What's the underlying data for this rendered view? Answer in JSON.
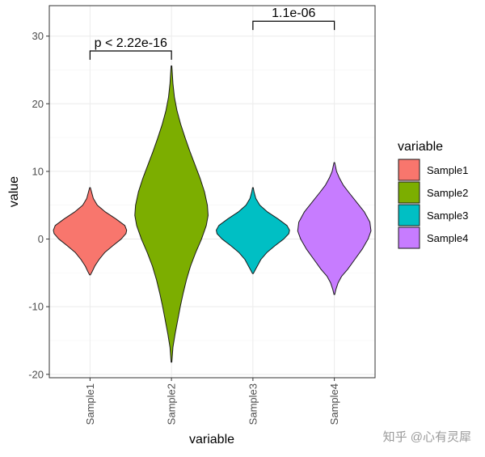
{
  "chart_data": {
    "type": "violin",
    "xlabel": "variable",
    "ylabel": "value",
    "ylim": [
      -20.5,
      34.5
    ],
    "yticks": [
      -20,
      -10,
      0,
      10,
      20,
      30
    ],
    "categories": [
      "Sample1",
      "Sample2",
      "Sample3",
      "Sample4"
    ],
    "series": [
      {
        "name": "Sample1",
        "color": "#F8766D",
        "range": [
          -5.3,
          7.6
        ],
        "profile": [
          [
            -5.3,
            0.01
          ],
          [
            -4.8,
            0.06
          ],
          [
            -4,
            0.13
          ],
          [
            -3,
            0.25
          ],
          [
            -2,
            0.4
          ],
          [
            -1,
            0.62
          ],
          [
            0,
            0.85
          ],
          [
            0.8,
            0.98
          ],
          [
            1.3,
            1.0
          ],
          [
            2,
            0.95
          ],
          [
            3,
            0.7
          ],
          [
            4,
            0.42
          ],
          [
            5,
            0.2
          ],
          [
            6,
            0.09
          ],
          [
            7,
            0.04
          ],
          [
            7.6,
            0.01
          ]
        ]
      },
      {
        "name": "Sample2",
        "color": "#7CAE00",
        "range": [
          -18.2,
          25.6
        ],
        "profile": [
          [
            -18.2,
            0.01
          ],
          [
            -16,
            0.04
          ],
          [
            -14,
            0.1
          ],
          [
            -12,
            0.17
          ],
          [
            -10,
            0.24
          ],
          [
            -8,
            0.32
          ],
          [
            -6,
            0.41
          ],
          [
            -4,
            0.52
          ],
          [
            -2,
            0.66
          ],
          [
            0,
            0.82
          ],
          [
            2,
            0.95
          ],
          [
            3.5,
            1.0
          ],
          [
            5,
            0.98
          ],
          [
            7,
            0.9
          ],
          [
            9,
            0.78
          ],
          [
            11,
            0.64
          ],
          [
            13,
            0.5
          ],
          [
            15,
            0.37
          ],
          [
            17,
            0.25
          ],
          [
            19,
            0.15
          ],
          [
            21,
            0.08
          ],
          [
            23,
            0.04
          ],
          [
            25.6,
            0.01
          ]
        ]
      },
      {
        "name": "Sample3",
        "color": "#00BFC4",
        "range": [
          -5.1,
          7.6
        ],
        "profile": [
          [
            -5.1,
            0.01
          ],
          [
            -4.6,
            0.06
          ],
          [
            -4,
            0.12
          ],
          [
            -3,
            0.22
          ],
          [
            -2,
            0.38
          ],
          [
            -1,
            0.6
          ],
          [
            0,
            0.84
          ],
          [
            0.8,
            0.98
          ],
          [
            1.3,
            1.0
          ],
          [
            2,
            0.93
          ],
          [
            3,
            0.68
          ],
          [
            4,
            0.4
          ],
          [
            5,
            0.19
          ],
          [
            6,
            0.08
          ],
          [
            7,
            0.03
          ],
          [
            7.6,
            0.01
          ]
        ]
      },
      {
        "name": "Sample4",
        "color": "#C77CFF",
        "range": [
          -8.2,
          11.3
        ],
        "profile": [
          [
            -8.2,
            0.01
          ],
          [
            -7.5,
            0.04
          ],
          [
            -6.5,
            0.1
          ],
          [
            -5.5,
            0.2
          ],
          [
            -4.5,
            0.36
          ],
          [
            -3,
            0.56
          ],
          [
            -1.5,
            0.76
          ],
          [
            0,
            0.92
          ],
          [
            1.2,
            1.0
          ],
          [
            2.5,
            0.97
          ],
          [
            4,
            0.82
          ],
          [
            5.5,
            0.6
          ],
          [
            7,
            0.38
          ],
          [
            8,
            0.24
          ],
          [
            9,
            0.14
          ],
          [
            10,
            0.06
          ],
          [
            11.3,
            0.01
          ]
        ]
      }
    ],
    "comparisons": [
      {
        "groups": [
          "Sample1",
          "Sample2"
        ],
        "label": "p < 2.22e-16",
        "y": 27.8,
        "tick": 1.3
      },
      {
        "groups": [
          "Sample3",
          "Sample4"
        ],
        "label": "1.1e-06",
        "y": 32.2,
        "tick": 1.3
      }
    ],
    "legend": {
      "title": "variable",
      "position": "right"
    },
    "grid": true
  },
  "watermark": "知乎 @心有灵犀"
}
